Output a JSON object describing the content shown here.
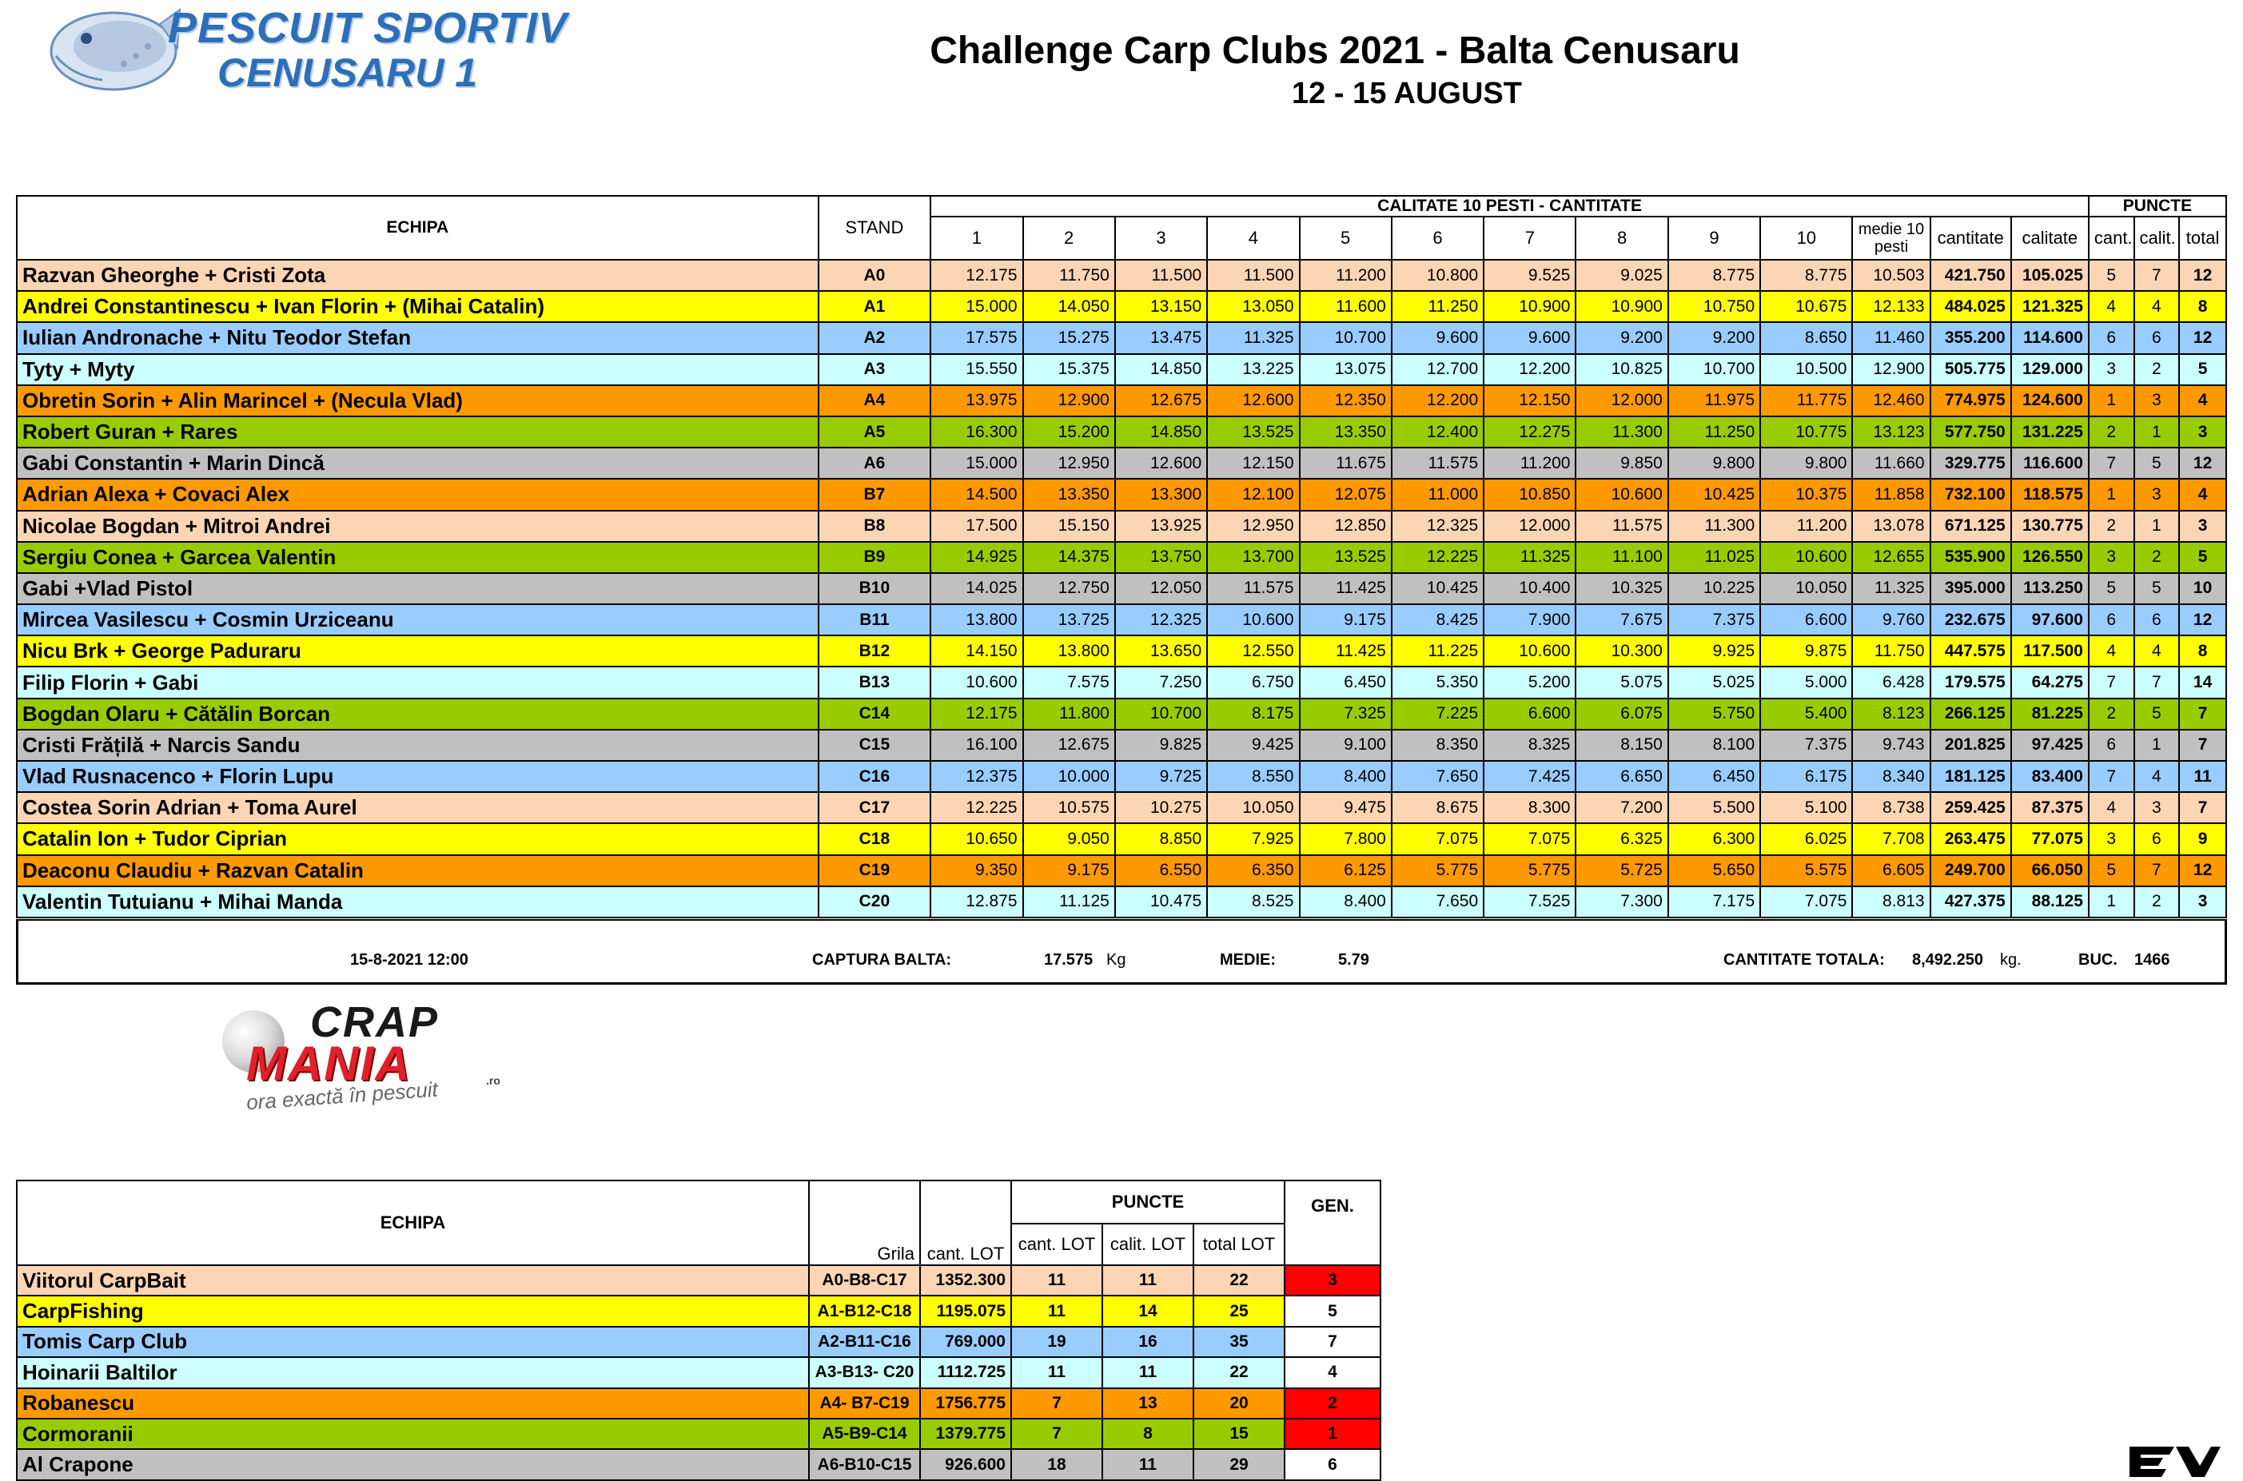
{
  "logo_top": {
    "line1": "PESCUIT SPORTIV",
    "line2": "CENUSARU 1"
  },
  "header": {
    "title": "Challenge Carp Clubs 2021 - Balta Cenusaru",
    "subtitle": "12 - 15 AUGUST"
  },
  "main_table": {
    "col_echipa": "ECHIPA",
    "col_stand": "STAND",
    "group_calitate": "CALITATE 10 PESTI - CANTITATE",
    "group_puncte": "PUNCTE",
    "fish_cols": [
      "1",
      "2",
      "3",
      "4",
      "5",
      "6",
      "7",
      "8",
      "9",
      "10"
    ],
    "col_medie": "medie 10 pesti",
    "col_cantitate": "cantitate",
    "col_calitate": "calitate",
    "col_cant": "cant.",
    "col_calit": "calit.",
    "col_total": "total",
    "rows": [
      {
        "team": "Razvan Gheorghe + Cristi Zota",
        "stand": "A0",
        "color": "#fcd5b4",
        "fish": [
          "12.175",
          "11.750",
          "11.500",
          "11.500",
          "11.200",
          "10.800",
          "9.525",
          "9.025",
          "8.775",
          "8.775"
        ],
        "medie": "10.503",
        "cantitate": "421.750",
        "calitate": "105.025",
        "cant": "5",
        "calit": "7",
        "total": "12"
      },
      {
        "team": "Andrei Constantinescu + Ivan Florin + (Mihai Catalin)",
        "stand": "A1",
        "color": "#ffff00",
        "fish": [
          "15.000",
          "14.050",
          "13.150",
          "13.050",
          "11.600",
          "11.250",
          "10.900",
          "10.900",
          "10.750",
          "10.675"
        ],
        "medie": "12.133",
        "cantitate": "484.025",
        "calitate": "121.325",
        "cant": "4",
        "calit": "4",
        "total": "8"
      },
      {
        "team": "Iulian Andronache + Nitu Teodor Stefan",
        "stand": "A2",
        "color": "#99ccff",
        "fish": [
          "17.575",
          "15.275",
          "13.475",
          "11.325",
          "10.700",
          "9.600",
          "9.600",
          "9.200",
          "9.200",
          "8.650"
        ],
        "medie": "11.460",
        "cantitate": "355.200",
        "calitate": "114.600",
        "cant": "6",
        "calit": "6",
        "total": "12"
      },
      {
        "team": "Tyty + Myty",
        "stand": "A3",
        "color": "#ccffff",
        "fish": [
          "15.550",
          "15.375",
          "14.850",
          "13.225",
          "13.075",
          "12.700",
          "12.200",
          "10.825",
          "10.700",
          "10.500"
        ],
        "medie": "12.900",
        "cantitate": "505.775",
        "calitate": "129.000",
        "cant": "3",
        "calit": "2",
        "total": "5"
      },
      {
        "team": "Obretin Sorin + Alin Marincel + (Necula Vlad)",
        "stand": "A4",
        "color": "#ff9900",
        "fish": [
          "13.975",
          "12.900",
          "12.675",
          "12.600",
          "12.350",
          "12.200",
          "12.150",
          "12.000",
          "11.975",
          "11.775"
        ],
        "medie": "12.460",
        "cantitate": "774.975",
        "calitate": "124.600",
        "cant": "1",
        "calit": "3",
        "total": "4"
      },
      {
        "team": "Robert Guran + Rares",
        "stand": "A5",
        "color": "#99cc00",
        "fish": [
          "16.300",
          "15.200",
          "14.850",
          "13.525",
          "13.350",
          "12.400",
          "12.275",
          "11.300",
          "11.250",
          "10.775"
        ],
        "medie": "13.123",
        "cantitate": "577.750",
        "calitate": "131.225",
        "cant": "2",
        "calit": "1",
        "total": "3"
      },
      {
        "team": "Gabi Constantin + Marin Dincă",
        "stand": "A6",
        "color": "#c0c0c0",
        "fish": [
          "15.000",
          "12.950",
          "12.600",
          "12.150",
          "11.675",
          "11.575",
          "11.200",
          "9.850",
          "9.800",
          "9.800"
        ],
        "medie": "11.660",
        "cantitate": "329.775",
        "calitate": "116.600",
        "cant": "7",
        "calit": "5",
        "total": "12"
      },
      {
        "team": "Adrian Alexa + Covaci Alex",
        "stand": "B7",
        "color": "#ff9900",
        "fish": [
          "14.500",
          "13.350",
          "13.300",
          "12.100",
          "12.075",
          "11.000",
          "10.850",
          "10.600",
          "10.425",
          "10.375"
        ],
        "medie": "11.858",
        "cantitate": "732.100",
        "calitate": "118.575",
        "cant": "1",
        "calit": "3",
        "total": "4"
      },
      {
        "team": "Nicolae Bogdan + Mitroi Andrei",
        "stand": "B8",
        "color": "#fcd5b4",
        "fish": [
          "17.500",
          "15.150",
          "13.925",
          "12.950",
          "12.850",
          "12.325",
          "12.000",
          "11.575",
          "11.300",
          "11.200"
        ],
        "medie": "13.078",
        "cantitate": "671.125",
        "calitate": "130.775",
        "cant": "2",
        "calit": "1",
        "total": "3"
      },
      {
        "team": "Sergiu Conea + Garcea Valentin",
        "stand": "B9",
        "color": "#99cc00",
        "fish": [
          "14.925",
          "14.375",
          "13.750",
          "13.700",
          "13.525",
          "12.225",
          "11.325",
          "11.100",
          "11.025",
          "10.600"
        ],
        "medie": "12.655",
        "cantitate": "535.900",
        "calitate": "126.550",
        "cant": "3",
        "calit": "2",
        "total": "5"
      },
      {
        "team": "Gabi +Vlad Pistol",
        "stand": "B10",
        "color": "#c0c0c0",
        "fish": [
          "14.025",
          "12.750",
          "12.050",
          "11.575",
          "11.425",
          "10.425",
          "10.400",
          "10.325",
          "10.225",
          "10.050"
        ],
        "medie": "11.325",
        "cantitate": "395.000",
        "calitate": "113.250",
        "cant": "5",
        "calit": "5",
        "total": "10"
      },
      {
        "team": "Mircea Vasilescu + Cosmin Urziceanu",
        "stand": "B11",
        "color": "#99ccff",
        "fish": [
          "13.800",
          "13.725",
          "12.325",
          "10.600",
          "9.175",
          "8.425",
          "7.900",
          "7.675",
          "7.375",
          "6.600"
        ],
        "medie": "9.760",
        "cantitate": "232.675",
        "calitate": "97.600",
        "cant": "6",
        "calit": "6",
        "total": "12"
      },
      {
        "team": "Nicu Brk + George Paduraru",
        "stand": "B12",
        "color": "#ffff00",
        "fish": [
          "14.150",
          "13.800",
          "13.650",
          "12.550",
          "11.425",
          "11.225",
          "10.600",
          "10.300",
          "9.925",
          "9.875"
        ],
        "medie": "11.750",
        "cantitate": "447.575",
        "calitate": "117.500",
        "cant": "4",
        "calit": "4",
        "total": "8"
      },
      {
        "team": "Filip Florin + Gabi",
        "stand": "B13",
        "color": "#ccffff",
        "fish": [
          "10.600",
          "7.575",
          "7.250",
          "6.750",
          "6.450",
          "5.350",
          "5.200",
          "5.075",
          "5.025",
          "5.000"
        ],
        "medie": "6.428",
        "cantitate": "179.575",
        "calitate": "64.275",
        "cant": "7",
        "calit": "7",
        "total": "14"
      },
      {
        "team": "Bogdan Olaru + Cătălin Borcan",
        "stand": "C14",
        "color": "#99cc00",
        "fish": [
          "12.175",
          "11.800",
          "10.700",
          "8.175",
          "7.325",
          "7.225",
          "6.600",
          "6.075",
          "5.750",
          "5.400"
        ],
        "medie": "8.123",
        "cantitate": "266.125",
        "calitate": "81.225",
        "cant": "2",
        "calit": "5",
        "total": "7"
      },
      {
        "team": "Cristi Frățilă + Narcis Sandu",
        "stand": "C15",
        "color": "#c0c0c0",
        "fish": [
          "16.100",
          "12.675",
          "9.825",
          "9.425",
          "9.100",
          "8.350",
          "8.325",
          "8.150",
          "8.100",
          "7.375"
        ],
        "medie": "9.743",
        "cantitate": "201.825",
        "calitate": "97.425",
        "cant": "6",
        "calit": "1",
        "total": "7"
      },
      {
        "team": "Vlad Rusnacenco + Florin Lupu",
        "stand": "C16",
        "color": "#99ccff",
        "fish": [
          "12.375",
          "10.000",
          "9.725",
          "8.550",
          "8.400",
          "7.650",
          "7.425",
          "6.650",
          "6.450",
          "6.175"
        ],
        "medie": "8.340",
        "cantitate": "181.125",
        "calitate": "83.400",
        "cant": "7",
        "calit": "4",
        "total": "11"
      },
      {
        "team": "Costea Sorin Adrian + Toma Aurel",
        "stand": "C17",
        "color": "#fcd5b4",
        "fish": [
          "12.225",
          "10.575",
          "10.275",
          "10.050",
          "9.475",
          "8.675",
          "8.300",
          "7.200",
          "5.500",
          "5.100"
        ],
        "medie": "8.738",
        "cantitate": "259.425",
        "calitate": "87.375",
        "cant": "4",
        "calit": "3",
        "total": "7"
      },
      {
        "team": "Catalin Ion + Tudor Ciprian",
        "stand": "C18",
        "color": "#ffff00",
        "fish": [
          "10.650",
          "9.050",
          "8.850",
          "7.925",
          "7.800",
          "7.075",
          "7.075",
          "6.325",
          "6.300",
          "6.025"
        ],
        "medie": "7.708",
        "cantitate": "263.475",
        "calitate": "77.075",
        "cant": "3",
        "calit": "6",
        "total": "9"
      },
      {
        "team": "Deaconu Claudiu + Razvan Catalin",
        "stand": "C19",
        "color": "#ff9900",
        "fish": [
          "9.350",
          "9.175",
          "6.550",
          "6.350",
          "6.125",
          "5.775",
          "5.775",
          "5.725",
          "5.650",
          "5.575"
        ],
        "medie": "6.605",
        "cantitate": "249.700",
        "calitate": "66.050",
        "cant": "5",
        "calit": "7",
        "total": "12"
      },
      {
        "team": "Valentin Tutuianu + Mihai Manda",
        "stand": "C20",
        "color": "#ccffff",
        "fish": [
          "12.875",
          "11.125",
          "10.475",
          "8.525",
          "8.400",
          "7.650",
          "7.525",
          "7.300",
          "7.175",
          "7.075"
        ],
        "medie": "8.813",
        "cantitate": "427.375",
        "calitate": "88.125",
        "cant": "1",
        "calit": "2",
        "total": "3"
      }
    ]
  },
  "footer": {
    "timestamp": "15-8-2021 12:00",
    "captura_label": "CAPTURA BALTA:",
    "captura_value": "17.575",
    "captura_unit": "Kg",
    "medie_label": "MEDIE:",
    "medie_value": "5.79",
    "total_label": "CANTITATE TOTALA:",
    "total_value": "8,492.250",
    "total_unit": "kg.",
    "buc_label": "BUC.",
    "buc_value": "1466"
  },
  "logo_bottom": {
    "line1": "CRAP",
    "line2": "MANIA",
    "domain": ".ro",
    "tagline": "ora exactă în pescuit"
  },
  "teams_table": {
    "col_echipa": "ECHIPA",
    "col_grila": "Grila",
    "col_cant_lot": "cant. LOT",
    "group_puncte": "PUNCTE",
    "col_p_cant": "cant. LOT",
    "col_p_calit": "calit. LOT",
    "col_p_total": "total LOT",
    "col_gen": "GEN.",
    "rows": [
      {
        "team": "Viitorul CarpBait",
        "grila": "A0-B8-C17",
        "color": "#fcd5b4",
        "cant_lot": "1352.300",
        "p_cant": "11",
        "p_calit": "11",
        "p_total": "22",
        "gen": "3",
        "gen_color": "#ff0000"
      },
      {
        "team": "CarpFishing",
        "grila": "A1-B12-C18",
        "color": "#ffff00",
        "cant_lot": "1195.075",
        "p_cant": "11",
        "p_calit": "14",
        "p_total": "25",
        "gen": "5",
        "gen_color": "#ffffff"
      },
      {
        "team": "Tomis Carp Club",
        "grila": "A2-B11-C16",
        "color": "#99ccff",
        "cant_lot": "769.000",
        "p_cant": "19",
        "p_calit": "16",
        "p_total": "35",
        "gen": "7",
        "gen_color": "#ffffff"
      },
      {
        "team": "Hoinarii Baltilor",
        "grila": "A3-B13- C20",
        "color": "#ccffff",
        "cant_lot": "1112.725",
        "p_cant": "11",
        "p_calit": "11",
        "p_total": "22",
        "gen": "4",
        "gen_color": "#ffffff"
      },
      {
        "team": "Robanescu",
        "grila": "A4- B7-C19",
        "color": "#ff9900",
        "cant_lot": "1756.775",
        "p_cant": "7",
        "p_calit": "13",
        "p_total": "20",
        "gen": "2",
        "gen_color": "#ff0000"
      },
      {
        "team": "Cormoranii",
        "grila": "A5-B9-C14",
        "color": "#99cc00",
        "cant_lot": "1379.775",
        "p_cant": "7",
        "p_calit": "8",
        "p_total": "15",
        "gen": "1",
        "gen_color": "#ff0000"
      },
      {
        "team": "Al Crapone",
        "grila": "A6-B10-C15",
        "color": "#c0c0c0",
        "cant_lot": "926.600",
        "p_cant": "18",
        "p_calit": "11",
        "p_total": "29",
        "gen": "6",
        "gen_color": "#ffffff"
      }
    ]
  },
  "corner_logo": {
    "icon": "ev-logo-icon"
  }
}
